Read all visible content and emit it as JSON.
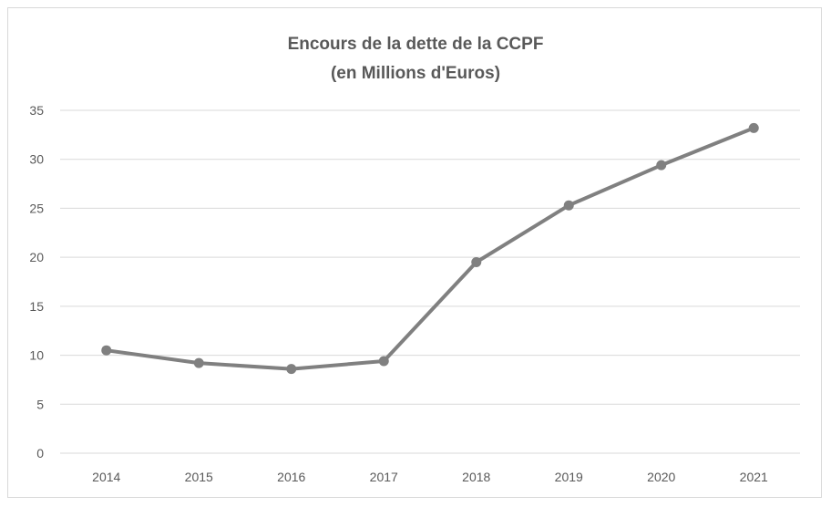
{
  "chart_data": {
    "type": "line",
    "title_lines": [
      "Encours de la dette de la CCPF",
      "(en Millions d'Euros)"
    ],
    "xlabel": "",
    "ylabel": "",
    "categories": [
      "2014",
      "2015",
      "2016",
      "2017",
      "2018",
      "2019",
      "2020",
      "2021"
    ],
    "series": [
      {
        "values": [
          10.5,
          9.2,
          8.6,
          9.4,
          19.5,
          25.3,
          29.4,
          33.2
        ],
        "color": "#808080"
      }
    ],
    "ylim": [
      0,
      35
    ],
    "yticks": [
      "0",
      "5",
      "10",
      "15",
      "20",
      "25",
      "30",
      "35"
    ],
    "grid": true,
    "legend": "none",
    "marker": "circle"
  }
}
